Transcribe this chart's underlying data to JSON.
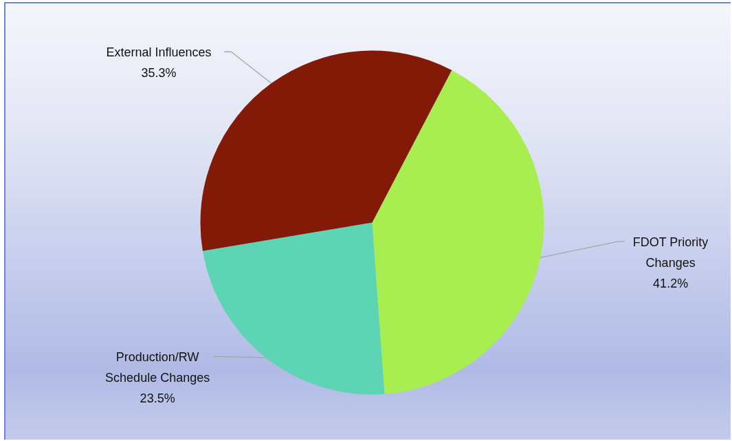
{
  "chart_data": {
    "type": "pie",
    "categories": [
      "FDOT Priority Changes",
      "Production/RW Schedule Changes",
      "External Influences"
    ],
    "values": [
      41.2,
      23.5,
      35.3
    ],
    "colors": [
      "#a8ee50",
      "#5dd4b3",
      "#821a07"
    ],
    "value_labels": [
      "41.2%",
      "23.5%",
      "35.3%"
    ]
  }
}
